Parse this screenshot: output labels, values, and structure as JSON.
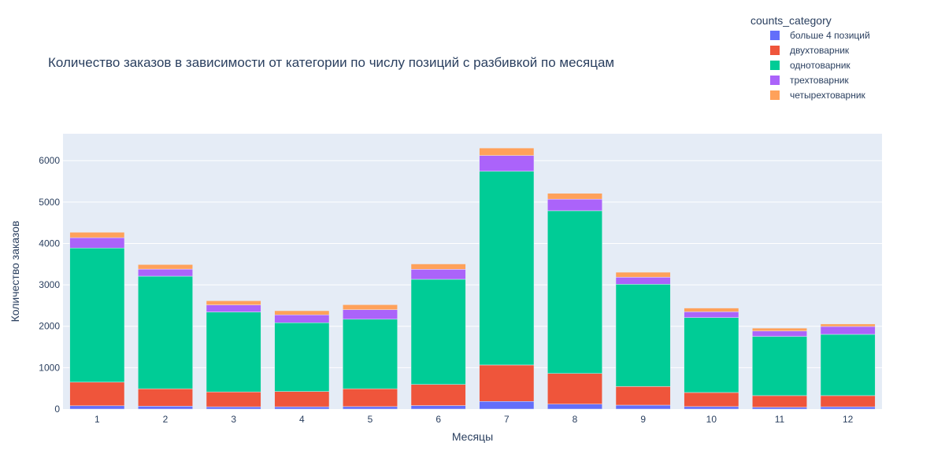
{
  "chart_data": {
    "type": "bar",
    "stacked": true,
    "title": "Количество заказов в зависимости от категории по числу позиций с разбивкой по месяцам",
    "xlabel": "Месяцы",
    "ylabel": "Количество заказов",
    "categories": [
      "1",
      "2",
      "3",
      "4",
      "5",
      "6",
      "7",
      "8",
      "9",
      "10",
      "11",
      "12"
    ],
    "ylim": [
      0,
      6650
    ],
    "yticks": [
      0,
      1000,
      2000,
      3000,
      4000,
      5000,
      6000
    ],
    "grid": true,
    "legend": {
      "title": "counts_category",
      "placement": "top-right"
    },
    "series": [
      {
        "name": "больше 4 позиций",
        "color": "#636efa",
        "values": [
          80,
          70,
          55,
          55,
          60,
          85,
          185,
          120,
          95,
          60,
          45,
          55
        ]
      },
      {
        "name": "двухтоварник",
        "color": "#ef553b",
        "values": [
          570,
          420,
          360,
          370,
          430,
          510,
          880,
          740,
          450,
          340,
          280,
          270
        ]
      },
      {
        "name": "однотоварник",
        "color": "#00cc96",
        "values": [
          3240,
          2720,
          1930,
          1660,
          1680,
          2540,
          4680,
          3930,
          2470,
          1810,
          1430,
          1480
        ]
      },
      {
        "name": "трехтоварник",
        "color": "#ab63fa",
        "values": [
          250,
          170,
          170,
          190,
          230,
          240,
          380,
          280,
          170,
          140,
          130,
          190
        ]
      },
      {
        "name": "четырехтоварник",
        "color": "#ffa15a",
        "values": [
          130,
          110,
          100,
          100,
          120,
          130,
          180,
          140,
          120,
          90,
          70,
          60
        ]
      }
    ]
  }
}
